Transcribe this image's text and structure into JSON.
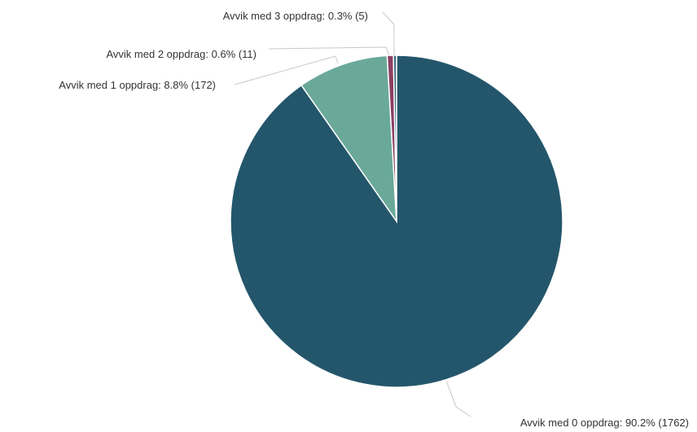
{
  "chart_data": {
    "type": "pie",
    "title": "",
    "start_angle": "12 o'clock, clockwise",
    "slices": [
      {
        "label": "Avvik med 0 oppdrag: 90.2% (1762)",
        "category": "Avvik med 0 oppdrag",
        "percent": 90.2,
        "count": 1762,
        "color": "#24566b"
      },
      {
        "label": "Avvik med 1 oppdrag: 8.8% (172)",
        "category": "Avvik med 1 oppdrag",
        "percent": 8.8,
        "count": 172,
        "color": "#6aa99a"
      },
      {
        "label": "Avvik med 2 oppdrag: 0.6% (11)",
        "category": "Avvik med 2 oppdrag",
        "percent": 0.6,
        "count": 11,
        "color": "#8b3f63"
      },
      {
        "label": "Avvik med 3 oppdrag: 0.3% (5)",
        "category": "Avvik med 3 oppdrag",
        "percent": 0.3,
        "count": 5,
        "color": "#3c6a7e"
      }
    ]
  }
}
